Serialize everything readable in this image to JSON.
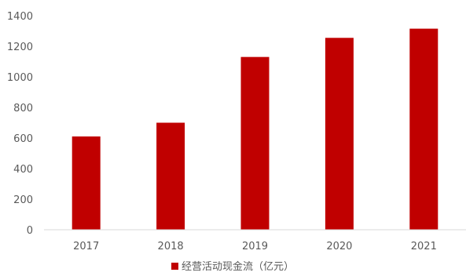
{
  "chart_data": {
    "type": "bar",
    "categories": [
      "2017",
      "2018",
      "2019",
      "2020",
      "2021"
    ],
    "series": [
      {
        "name": "经营活动现金流（亿元）",
        "values": [
          610,
          700,
          1130,
          1255,
          1315
        ]
      }
    ],
    "yticks": [
      "0",
      "200",
      "400",
      "600",
      "800",
      "1000",
      "1200",
      "1400"
    ],
    "ylim": [
      0,
      1400
    ],
    "grid": false,
    "legend_position": "bottom-center",
    "bar_color": "#C00000"
  }
}
